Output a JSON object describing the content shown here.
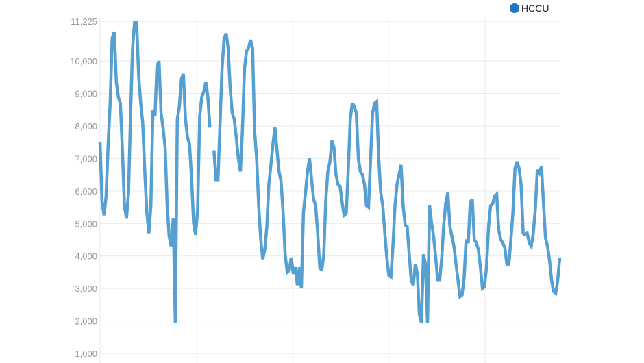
{
  "chart_data": {
    "type": "line",
    "title": "",
    "xlabel": "",
    "ylabel": "",
    "ylim": [
      1000,
      11225
    ],
    "y_ticks": [
      "1,000",
      "2,000",
      "3,000",
      "4,000",
      "5,000",
      "6,000",
      "7,000",
      "8,000",
      "9,000",
      "10,000",
      "11,225"
    ],
    "y_tick_values": [
      1000,
      2000,
      3000,
      4000,
      5000,
      6000,
      7000,
      8000,
      9000,
      10000,
      11225
    ],
    "grid": true,
    "legend_position": "top-right",
    "series": [
      {
        "name": "HCCU",
        "color": "#559fd1",
        "values": [
          7500,
          5650,
          5250,
          5850,
          7450,
          8700,
          10700,
          10900,
          9350,
          8900,
          8700,
          7250,
          5550,
          5150,
          5950,
          8300,
          10400,
          11200,
          11200,
          9550,
          8700,
          8100,
          6600,
          5350,
          4700,
          5550,
          8500,
          8300,
          9850,
          10000,
          8400,
          7950,
          7350,
          5550,
          4600,
          4300,
          5150,
          1950,
          8200,
          8600,
          9450,
          9600,
          8200,
          7650,
          7450,
          6400,
          5000,
          4650,
          5450,
          8300,
          8900,
          9050,
          9350,
          8900,
          7950,
          null,
          7250,
          6350,
          6350,
          8100,
          9750,
          10700,
          10850,
          10400,
          9150,
          8400,
          8200,
          7650,
          7000,
          6600,
          7850,
          9750,
          10300,
          10400,
          10650,
          10400,
          7850,
          7000,
          5550,
          4500,
          3900,
          4200,
          4900,
          6200,
          6800,
          7450,
          7950,
          7250,
          6600,
          6300,
          5350,
          4050,
          3500,
          3550,
          3950,
          3450,
          3650,
          3100,
          3650,
          3000,
          5350,
          5950,
          6600,
          7000,
          6350,
          5750,
          5550,
          4700,
          3650,
          3550,
          4050,
          5750,
          6600,
          6900,
          7550,
          7350,
          6500,
          6200,
          6150,
          5650,
          5250,
          5300,
          6600,
          8200,
          8700,
          8600,
          8400,
          7000,
          6600,
          6500,
          6200,
          5550,
          5500,
          7000,
          8400,
          8700,
          8750,
          7000,
          5950,
          5550,
          4700,
          3950,
          3400,
          3350,
          4300,
          5550,
          6200,
          6500,
          6800,
          5550,
          4950,
          4900,
          4050,
          3250,
          3100,
          3750,
          3450,
          2200,
          1950,
          4050,
          3750,
          1950,
          5550,
          5000,
          4600,
          3950,
          3250,
          3250,
          3950,
          5000,
          5650,
          5950,
          4900,
          4600,
          4300,
          3750,
          3250,
          2750,
          2800,
          3350,
          4500,
          4400,
          5650,
          5750,
          4500,
          4400,
          4200,
          3650,
          3000,
          3050,
          3650,
          4900,
          5550,
          5600,
          5850,
          5900,
          4800,
          4500,
          4400,
          4250,
          3750,
          3750,
          4500,
          5350,
          6700,
          6900,
          6700,
          6200,
          4700,
          4650,
          4700,
          4400,
          4300,
          4700,
          5450,
          6650,
          6550,
          6750,
          5650,
          4550,
          4300,
          3850,
          3250,
          2900,
          2850,
          3250,
          3950
        ]
      }
    ]
  },
  "colors": {
    "line": "#559fd1",
    "legend_marker": "#1f77c4",
    "grid": "#e9e9e9",
    "tick_text": "#9a9a9a"
  }
}
